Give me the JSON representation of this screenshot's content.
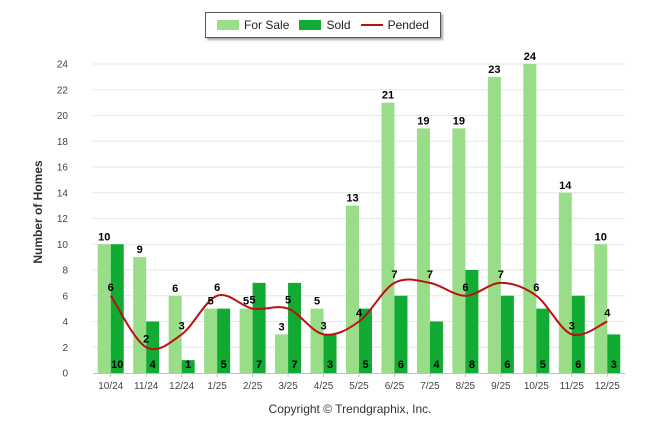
{
  "chart_data": {
    "type": "bar",
    "categories": [
      "10/24",
      "11/24",
      "12/24",
      "1/25",
      "2/25",
      "3/25",
      "4/25",
      "5/25",
      "6/25",
      "7/25",
      "8/25",
      "9/25",
      "10/25",
      "11/25",
      "12/25"
    ],
    "series": [
      {
        "name": "For Sale",
        "type": "bar",
        "color": "#99dd88",
        "values": [
          10,
          9,
          6,
          5,
          5,
          3,
          5,
          13,
          21,
          19,
          19,
          23,
          24,
          14,
          10
        ]
      },
      {
        "name": "Sold",
        "type": "bar",
        "color": "#11aa33",
        "values": [
          10,
          4,
          1,
          5,
          7,
          7,
          3,
          5,
          6,
          4,
          8,
          6,
          5,
          6,
          3
        ]
      },
      {
        "name": "Pended",
        "type": "line",
        "color": "#bb1111",
        "values": [
          6,
          2,
          3,
          6,
          5,
          5,
          3,
          4,
          7,
          7,
          6,
          7,
          6,
          3,
          4
        ]
      }
    ],
    "ylabel": "Number of Homes",
    "ylim": [
      0,
      24
    ],
    "yticks": [
      0,
      2,
      4,
      6,
      8,
      10,
      12,
      14,
      16,
      18,
      20,
      22,
      24
    ],
    "grid": true,
    "legend_position": "top-center"
  },
  "copyright": "Copyright © Trendgraphix, Inc."
}
